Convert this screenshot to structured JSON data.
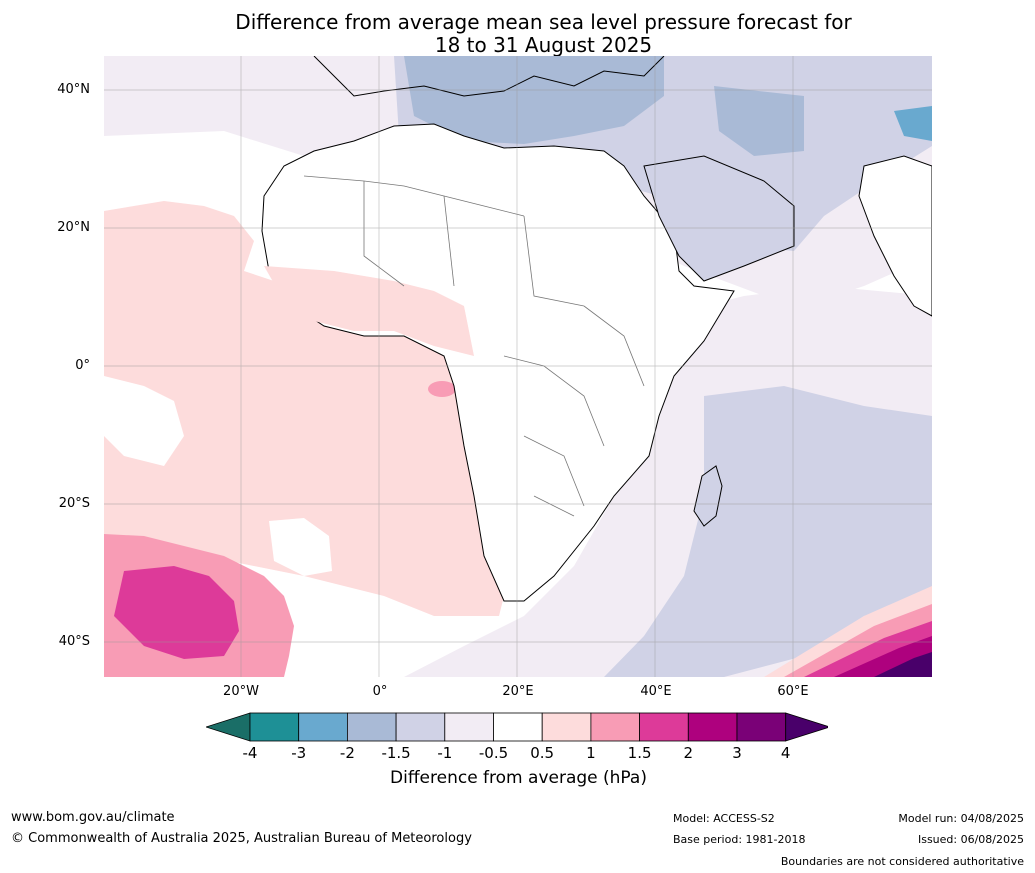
{
  "title": {
    "line1": "Difference from average mean sea level pressure forecast for",
    "line2": "18 to 31 August 2025"
  },
  "map": {
    "region": "Africa",
    "lat_labels": [
      "40°N",
      "20°N",
      "0°",
      "20°S",
      "40°S"
    ],
    "lon_labels": [
      "20°W",
      "0°",
      "20°E",
      "40°E",
      "60°E"
    ],
    "colors": {
      "ocean_pos_weak": "#fddcdc",
      "ocean_pos_mid": "#f89cb5",
      "ocean_pos_strong": "#dd3a99",
      "neg_weak": "#f2ecf4",
      "neg_mid": "#d0d2e6",
      "neg_strong": "#a9bad6",
      "neutral": "#ffffff"
    }
  },
  "colorbar": {
    "ticks": [
      "-4",
      "-3",
      "-2",
      "-1.5",
      "-1",
      "-0.5",
      "0.5",
      "1",
      "1.5",
      "2",
      "3",
      "4"
    ],
    "colors": [
      "#1a6e67",
      "#1e9096",
      "#69a9cf",
      "#a9bad6",
      "#d0d2e6",
      "#f2ecf4",
      "#ffffff",
      "#fddcdc",
      "#f89cb5",
      "#dd3a99",
      "#ae017e",
      "#7a0177",
      "#49006a"
    ],
    "label": "Difference from average (hPa)"
  },
  "footer": {
    "website": "www.bom.gov.au/climate",
    "copyright": "© Commonwealth of Australia 2025, Australian Bureau of Meteorology",
    "model": "Model: ACCESS-S2",
    "base_period": "Base period: 1981-2018",
    "model_run": "Model run: 04/08/2025",
    "issued": "Issued: 06/08/2025",
    "disclaimer": "Boundaries are not considered authoritative"
  }
}
